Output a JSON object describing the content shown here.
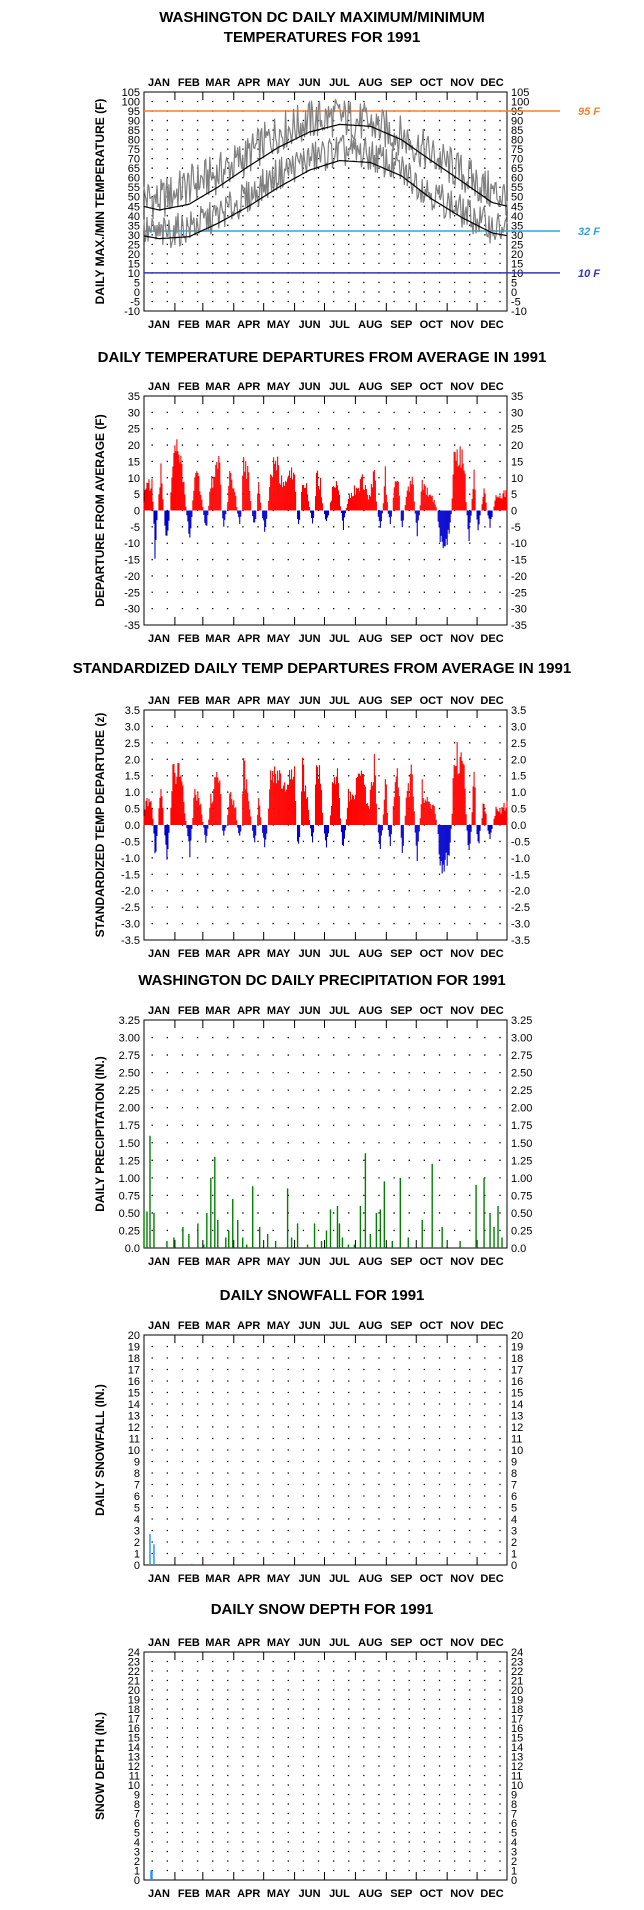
{
  "months": [
    "JAN",
    "FEB",
    "MAR",
    "APR",
    "MAY",
    "JUN",
    "JUL",
    "AUG",
    "SEP",
    "OCT",
    "NOV",
    "DEC"
  ],
  "colors": {
    "frame": "#000000",
    "dots": "#000000",
    "maxmin_trace": "#808080",
    "normals": "#000000",
    "line95": "#ff7f27",
    "line32": "#29a8e0",
    "line10": "#3333cc",
    "warm": "#ff0000",
    "cold": "#0000cc",
    "precip": "#008000",
    "snow": "#1e90ff"
  },
  "chart_data": [
    {
      "id": "temps",
      "type": "line",
      "title": "WASHINGTON DC DAILY MAXIMUM/MINIMUM",
      "title2": "TEMPERATURES FOR 1991",
      "ylabel": "DAILY MAX./MIN TEMPERATURE (F)",
      "ylim": [
        -10,
        105
      ],
      "ystep": 5,
      "yticks": [
        "-10",
        "-5",
        "0",
        "5",
        "10",
        "15",
        "20",
        "25",
        "30",
        "35",
        "40",
        "45",
        "50",
        "55",
        "60",
        "65",
        "70",
        "75",
        "80",
        "85",
        "90",
        "95",
        "100",
        "105"
      ],
      "x_unit": "day of year 1991 (1-365)",
      "series": [
        {
          "role": "normal max",
          "values_by_month_mid": [
            43,
            46,
            55,
            66,
            76,
            84,
            88,
            87,
            80,
            69,
            58,
            47
          ]
        },
        {
          "role": "normal min",
          "values_by_month_mid": [
            28,
            29,
            36,
            45,
            55,
            64,
            69,
            68,
            61,
            49,
            39,
            31
          ]
        },
        {
          "role": "daily max",
          "values_by_month_mid": [
            48,
            56,
            62,
            72,
            84,
            90,
            92,
            88,
            82,
            72,
            62,
            52
          ],
          "range_note": "daily traces 20-104"
        },
        {
          "role": "daily min",
          "values_by_month_mid": [
            30,
            34,
            40,
            50,
            62,
            70,
            74,
            72,
            64,
            52,
            42,
            34
          ]
        }
      ],
      "reference_lines": [
        {
          "value": 95,
          "label": "95 F"
        },
        {
          "value": 32,
          "label": "32 F"
        },
        {
          "value": 10,
          "label": "10 F"
        }
      ]
    },
    {
      "id": "departures",
      "type": "bar",
      "title": "DAILY TEMPERATURE DEPARTURES FROM AVERAGE IN 1991",
      "ylabel": "DEPARTURE FROM AVERAGE (F)",
      "ylim": [
        -35,
        35
      ],
      "ystep": 5,
      "yticks": [
        "-35",
        "-30",
        "-25",
        "-20",
        "-15",
        "-10",
        "-5",
        "0",
        "5",
        "10",
        "15",
        "20",
        "25",
        "30",
        "35"
      ],
      "x_unit": "day of year 1991 (1-365)",
      "peaks": [
        {
          "day": 3,
          "value": 12
        },
        {
          "day": 9,
          "value": 10
        },
        {
          "day": 12,
          "value": -15
        },
        {
          "day": 18,
          "value": 15
        },
        {
          "day": 24,
          "value": -14
        },
        {
          "day": 30,
          "value": 20
        },
        {
          "day": 34,
          "value": 23
        },
        {
          "day": 40,
          "value": 14
        },
        {
          "day": 47,
          "value": -14
        },
        {
          "day": 52,
          "value": 16
        },
        {
          "day": 58,
          "value": 8
        },
        {
          "day": 63,
          "value": -8
        },
        {
          "day": 68,
          "value": 10
        },
        {
          "day": 72,
          "value": 14
        },
        {
          "day": 77,
          "value": 20
        },
        {
          "day": 81,
          "value": -5
        },
        {
          "day": 87,
          "value": 14
        },
        {
          "day": 92,
          "value": 9
        },
        {
          "day": 97,
          "value": -5
        },
        {
          "day": 101,
          "value": 22
        },
        {
          "day": 106,
          "value": 12
        },
        {
          "day": 112,
          "value": -6
        },
        {
          "day": 116,
          "value": 10
        },
        {
          "day": 122,
          "value": -8
        },
        {
          "day": 128,
          "value": 15
        },
        {
          "day": 134,
          "value": 18
        },
        {
          "day": 140,
          "value": 10
        },
        {
          "day": 146,
          "value": 12
        },
        {
          "day": 152,
          "value": 16
        },
        {
          "day": 156,
          "value": -6
        },
        {
          "day": 160,
          "value": 14
        },
        {
          "day": 165,
          "value": 8
        },
        {
          "day": 170,
          "value": -5
        },
        {
          "day": 174,
          "value": 14
        },
        {
          "day": 178,
          "value": 10
        },
        {
          "day": 184,
          "value": -5
        },
        {
          "day": 190,
          "value": 8
        },
        {
          "day": 196,
          "value": 10
        },
        {
          "day": 201,
          "value": -6
        },
        {
          "day": 206,
          "value": 6
        },
        {
          "day": 212,
          "value": 8
        },
        {
          "day": 220,
          "value": 12
        },
        {
          "day": 226,
          "value": 4
        },
        {
          "day": 232,
          "value": 14
        },
        {
          "day": 238,
          "value": -6
        },
        {
          "day": 243,
          "value": 14
        },
        {
          "day": 248,
          "value": -6
        },
        {
          "day": 252,
          "value": 8
        },
        {
          "day": 256,
          "value": 13
        },
        {
          "day": 260,
          "value": -9
        },
        {
          "day": 264,
          "value": 6
        },
        {
          "day": 270,
          "value": 15
        },
        {
          "day": 275,
          "value": -8
        },
        {
          "day": 280,
          "value": 10
        },
        {
          "day": 287,
          "value": 6
        },
        {
          "day": 292,
          "value": 4
        },
        {
          "day": 298,
          "value": -12
        },
        {
          "day": 302,
          "value": -15
        },
        {
          "day": 307,
          "value": -8
        },
        {
          "day": 312,
          "value": 24
        },
        {
          "day": 317,
          "value": 22
        },
        {
          "day": 322,
          "value": 20
        },
        {
          "day": 327,
          "value": -10
        },
        {
          "day": 332,
          "value": 19
        },
        {
          "day": 336,
          "value": -8
        },
        {
          "day": 342,
          "value": 10
        },
        {
          "day": 348,
          "value": -6
        },
        {
          "day": 354,
          "value": 6
        },
        {
          "day": 360,
          "value": 6
        },
        {
          "day": 364,
          "value": 8
        }
      ]
    },
    {
      "id": "standardized",
      "type": "bar",
      "title": "STANDARDIZED DAILY TEMP DEPARTURES FROM AVERAGE IN 1991",
      "ylabel": "STANDARDIZED TEMP DEPARTURE (z)",
      "ylim": [
        -3.5,
        3.5
      ],
      "ystep": 0.5,
      "yticks": [
        "-3.5",
        "-3.0",
        "-2.5",
        "-2.0",
        "-1.5",
        "-1.0",
        "-0.5",
        "0.0",
        "0.5",
        "1.0",
        "1.5",
        "2.0",
        "2.5",
        "3.0",
        "3.5"
      ],
      "x_unit": "day of year 1991 (1-365)",
      "peaks": [
        {
          "day": 3,
          "value": 0.9
        },
        {
          "day": 9,
          "value": 0.8
        },
        {
          "day": 12,
          "value": -1.3
        },
        {
          "day": 18,
          "value": 1.6
        },
        {
          "day": 24,
          "value": -1.2
        },
        {
          "day": 30,
          "value": 1.9
        },
        {
          "day": 34,
          "value": 2.3
        },
        {
          "day": 40,
          "value": 1.2
        },
        {
          "day": 47,
          "value": -1.0
        },
        {
          "day": 52,
          "value": 1.4
        },
        {
          "day": 58,
          "value": 0.7
        },
        {
          "day": 63,
          "value": -0.6
        },
        {
          "day": 68,
          "value": 1.0
        },
        {
          "day": 72,
          "value": 1.5
        },
        {
          "day": 77,
          "value": 2.1
        },
        {
          "day": 81,
          "value": -0.4
        },
        {
          "day": 87,
          "value": 1.3
        },
        {
          "day": 92,
          "value": 0.9
        },
        {
          "day": 97,
          "value": -0.5
        },
        {
          "day": 101,
          "value": 2.2
        },
        {
          "day": 106,
          "value": 1.2
        },
        {
          "day": 112,
          "value": -0.7
        },
        {
          "day": 116,
          "value": 1.0
        },
        {
          "day": 122,
          "value": -0.8
        },
        {
          "day": 128,
          "value": 1.8
        },
        {
          "day": 134,
          "value": 2.2
        },
        {
          "day": 140,
          "value": 1.3
        },
        {
          "day": 146,
          "value": 1.6
        },
        {
          "day": 152,
          "value": 2.5
        },
        {
          "day": 156,
          "value": -1.0
        },
        {
          "day": 160,
          "value": 2.1
        },
        {
          "day": 165,
          "value": 1.1
        },
        {
          "day": 170,
          "value": -0.6
        },
        {
          "day": 174,
          "value": 2.5
        },
        {
          "day": 178,
          "value": 1.7
        },
        {
          "day": 184,
          "value": -0.8
        },
        {
          "day": 190,
          "value": 1.4
        },
        {
          "day": 196,
          "value": 1.8
        },
        {
          "day": 201,
          "value": -1.1
        },
        {
          "day": 206,
          "value": 1.1
        },
        {
          "day": 212,
          "value": 1.4
        },
        {
          "day": 220,
          "value": 2.0
        },
        {
          "day": 226,
          "value": 0.6
        },
        {
          "day": 232,
          "value": 2.3
        },
        {
          "day": 238,
          "value": -0.9
        },
        {
          "day": 243,
          "value": 2.2
        },
        {
          "day": 248,
          "value": -0.9
        },
        {
          "day": 252,
          "value": 1.3
        },
        {
          "day": 256,
          "value": 2.0
        },
        {
          "day": 260,
          "value": -1.4
        },
        {
          "day": 264,
          "value": 0.9
        },
        {
          "day": 270,
          "value": 2.1
        },
        {
          "day": 275,
          "value": -1.2
        },
        {
          "day": 280,
          "value": 1.4
        },
        {
          "day": 287,
          "value": 0.8
        },
        {
          "day": 292,
          "value": 0.6
        },
        {
          "day": 298,
          "value": -1.4
        },
        {
          "day": 302,
          "value": -1.8
        },
        {
          "day": 307,
          "value": -1.0
        },
        {
          "day": 312,
          "value": 2.8
        },
        {
          "day": 317,
          "value": 2.4
        },
        {
          "day": 322,
          "value": 2.2
        },
        {
          "day": 327,
          "value": -1.1
        },
        {
          "day": 332,
          "value": 2.3
        },
        {
          "day": 336,
          "value": -0.9
        },
        {
          "day": 342,
          "value": 1.1
        },
        {
          "day": 348,
          "value": -0.6
        },
        {
          "day": 354,
          "value": 0.6
        },
        {
          "day": 360,
          "value": 0.6
        },
        {
          "day": 364,
          "value": 0.8
        }
      ]
    },
    {
      "id": "precip",
      "type": "bar",
      "title": "WASHINGTON DC DAILY PRECIPITATION FOR 1991",
      "ylabel": "DAILY PRECIPITATION (IN.)",
      "ylim": [
        0,
        3.25
      ],
      "ystep": 0.25,
      "yticks": [
        "0.0",
        "0.25",
        "0.50",
        "0.75",
        "1.00",
        "1.25",
        "1.50",
        "1.75",
        "2.00",
        "2.25",
        "2.50",
        "2.75",
        "3.00",
        "3.25"
      ],
      "x_unit": "day of year 1991 (1-365)",
      "bars": [
        {
          "day": 1,
          "value": 0.55
        },
        {
          "day": 4,
          "value": 0.52
        },
        {
          "day": 7,
          "value": 1.6
        },
        {
          "day": 11,
          "value": 0.5
        },
        {
          "day": 24,
          "value": 0.1
        },
        {
          "day": 31,
          "value": 0.15
        },
        {
          "day": 40,
          "value": 0.3
        },
        {
          "day": 46,
          "value": 0.2
        },
        {
          "day": 55,
          "value": 0.35
        },
        {
          "day": 61,
          "value": 0.05
        },
        {
          "day": 64,
          "value": 0.5
        },
        {
          "day": 68,
          "value": 1.0
        },
        {
          "day": 72,
          "value": 1.3
        },
        {
          "day": 75,
          "value": 0.4
        },
        {
          "day": 83,
          "value": 0.15
        },
        {
          "day": 86,
          "value": 0.25
        },
        {
          "day": 90,
          "value": 0.7
        },
        {
          "day": 95,
          "value": 0.4
        },
        {
          "day": 100,
          "value": 0.15
        },
        {
          "day": 104,
          "value": 0.05
        },
        {
          "day": 110,
          "value": 0.88
        },
        {
          "day": 117,
          "value": 0.3
        },
        {
          "day": 125,
          "value": 0.2
        },
        {
          "day": 133,
          "value": 0.1
        },
        {
          "day": 145,
          "value": 0.85
        },
        {
          "day": 149,
          "value": 0.15
        },
        {
          "day": 155,
          "value": 0.35
        },
        {
          "day": 165,
          "value": 0.05
        },
        {
          "day": 172,
          "value": 0.35
        },
        {
          "day": 179,
          "value": 0.1
        },
        {
          "day": 184,
          "value": 0.25
        },
        {
          "day": 188,
          "value": 0.55
        },
        {
          "day": 195,
          "value": 0.6
        },
        {
          "day": 197,
          "value": 0.35
        },
        {
          "day": 200,
          "value": 0.15
        },
        {
          "day": 206,
          "value": 0.05
        },
        {
          "day": 212,
          "value": 0.05
        },
        {
          "day": 218,
          "value": 0.6
        },
        {
          "day": 223,
          "value": 1.35
        },
        {
          "day": 228,
          "value": 0.2
        },
        {
          "day": 234,
          "value": 0.5
        },
        {
          "day": 238,
          "value": 0.55
        },
        {
          "day": 242,
          "value": 0.95
        },
        {
          "day": 250,
          "value": 0.1
        },
        {
          "day": 258,
          "value": 1.0
        },
        {
          "day": 266,
          "value": 0.15
        },
        {
          "day": 280,
          "value": 0.4
        },
        {
          "day": 290,
          "value": 1.2
        },
        {
          "day": 300,
          "value": 0.3
        },
        {
          "day": 318,
          "value": 0.1
        },
        {
          "day": 334,
          "value": 0.9
        },
        {
          "day": 342,
          "value": 1.0
        },
        {
          "day": 348,
          "value": 0.5
        },
        {
          "day": 352,
          "value": 0.3
        },
        {
          "day": 356,
          "value": 0.6
        },
        {
          "day": 360,
          "value": 0.15
        }
      ]
    },
    {
      "id": "snowfall",
      "type": "bar",
      "title": "DAILY SNOWFALL FOR 1991",
      "ylabel": "DAILY SNOWFALL (IN.)",
      "ylim": [
        0,
        20
      ],
      "ystep": 1,
      "yticks": [
        "0",
        "1",
        "2",
        "3",
        "4",
        "5",
        "6",
        "7",
        "8",
        "9",
        "10",
        "11",
        "12",
        "13",
        "14",
        "15",
        "16",
        "17",
        "18",
        "19",
        "20"
      ],
      "x_unit": "day of year 1991 (1-365)",
      "bars": [
        {
          "day": 7,
          "value": 2.7
        },
        {
          "day": 11,
          "value": 1.8
        },
        {
          "day": 49,
          "value": 0.1
        }
      ]
    },
    {
      "id": "snowdepth",
      "type": "bar",
      "title": "DAILY SNOW DEPTH FOR 1991",
      "ylabel": "SNOW DEPTH (IN.)",
      "ylim": [
        0,
        24
      ],
      "ystep": 1,
      "yticks": [
        "0",
        "1",
        "2",
        "3",
        "4",
        "5",
        "6",
        "7",
        "8",
        "9",
        "10",
        "11",
        "12",
        "13",
        "14",
        "15",
        "16",
        "17",
        "18",
        "19",
        "20",
        "21",
        "22",
        "23",
        "24"
      ],
      "x_unit": "day of year 1991 (1-365)",
      "bars": [
        {
          "day": 8,
          "value": 1.0
        },
        {
          "day": 9,
          "value": 1.0
        }
      ]
    }
  ]
}
